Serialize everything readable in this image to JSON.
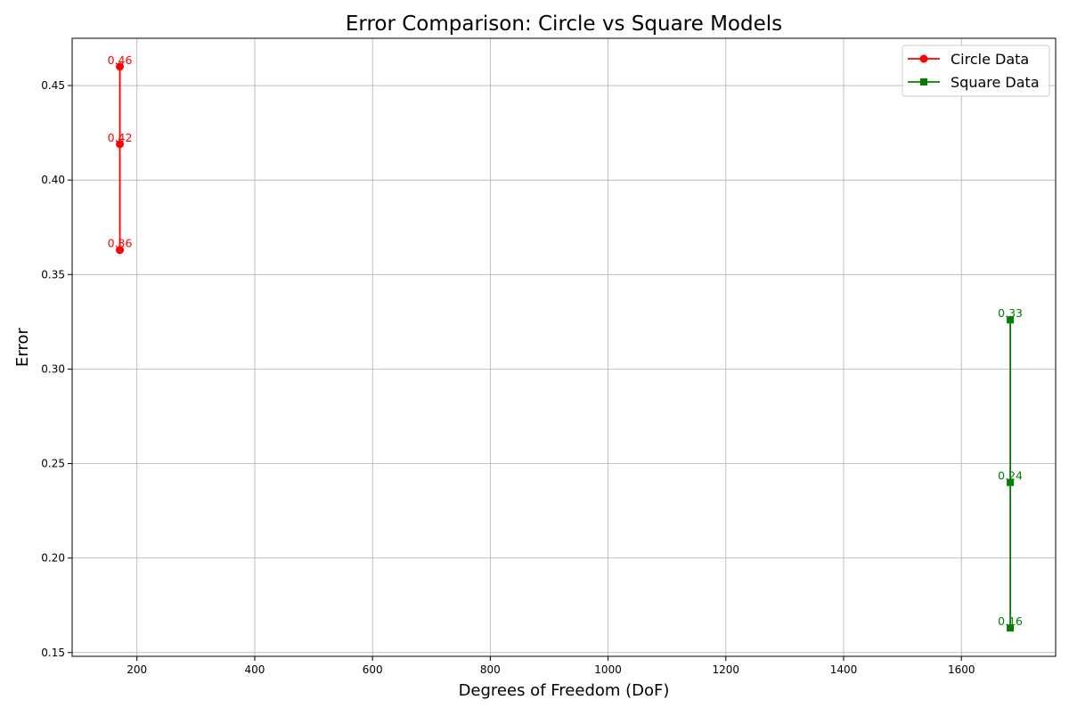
{
  "chart_data": {
    "type": "line",
    "title": "Error Comparison: Circle vs Square Models",
    "xlabel": "Degrees of Freedom (DoF)",
    "ylabel": "Error",
    "xlim": [
      90,
      1760
    ],
    "ylim": [
      0.148,
      0.475
    ],
    "x_ticks": [
      200,
      400,
      600,
      800,
      1000,
      1200,
      1400,
      1600
    ],
    "x_tick_labels": [
      "200",
      "400",
      "600",
      "800",
      "1000",
      "1200",
      "1400",
      "1600"
    ],
    "y_ticks": [
      0.15,
      0.2,
      0.25,
      0.3,
      0.35,
      0.4,
      0.45
    ],
    "y_tick_labels": [
      "0.15",
      "0.20",
      "0.25",
      "0.30",
      "0.35",
      "0.40",
      "0.45"
    ],
    "grid": true,
    "legend_position": "top-right",
    "series": [
      {
        "name": "Circle Data",
        "color": "#ff0000",
        "marker": "circle",
        "points": [
          {
            "x": 171,
            "y": 0.46,
            "label": "0.46"
          },
          {
            "x": 171,
            "y": 0.419,
            "label": "0.42"
          },
          {
            "x": 171,
            "y": 0.363,
            "label": "0.36"
          }
        ]
      },
      {
        "name": "Square Data",
        "color": "#008000",
        "marker": "square",
        "points": [
          {
            "x": 1683,
            "y": 0.326,
            "label": "0.33"
          },
          {
            "x": 1683,
            "y": 0.24,
            "label": "0.24"
          },
          {
            "x": 1683,
            "y": 0.163,
            "label": "0.16"
          }
        ]
      }
    ]
  }
}
